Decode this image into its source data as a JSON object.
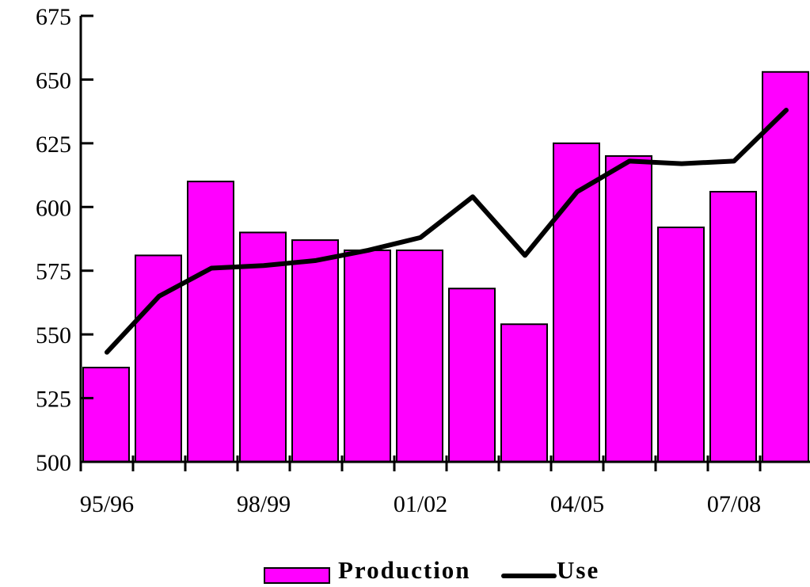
{
  "chart_data": {
    "type": "bar",
    "categories": [
      "95/96",
      "96/97",
      "97/98",
      "98/99",
      "99/00",
      "00/01",
      "01/02",
      "02/03",
      "03/04",
      "04/05",
      "05/06",
      "06/07",
      "07/08",
      "08/09"
    ],
    "x_tick_labels": [
      "95/96",
      "98/99",
      "01/02",
      "04/05",
      "07/08"
    ],
    "series": [
      {
        "name": "Production",
        "type": "bar",
        "color": "#ff00ff",
        "values": [
          537,
          581,
          610,
          590,
          587,
          583,
          583,
          568,
          554,
          625,
          620,
          592,
          606,
          653
        ]
      },
      {
        "name": "Use",
        "type": "line",
        "color": "#000000",
        "values": [
          543,
          565,
          576,
          577,
          579,
          583,
          588,
          604,
          581,
          606,
          618,
          617,
          618,
          638
        ]
      }
    ],
    "ylim": [
      500,
      675
    ],
    "yticks": [
      500,
      525,
      550,
      575,
      600,
      625,
      650,
      675
    ],
    "title": "",
    "xlabel": "",
    "ylabel": "",
    "grid": false,
    "legend": "bottom-center"
  }
}
